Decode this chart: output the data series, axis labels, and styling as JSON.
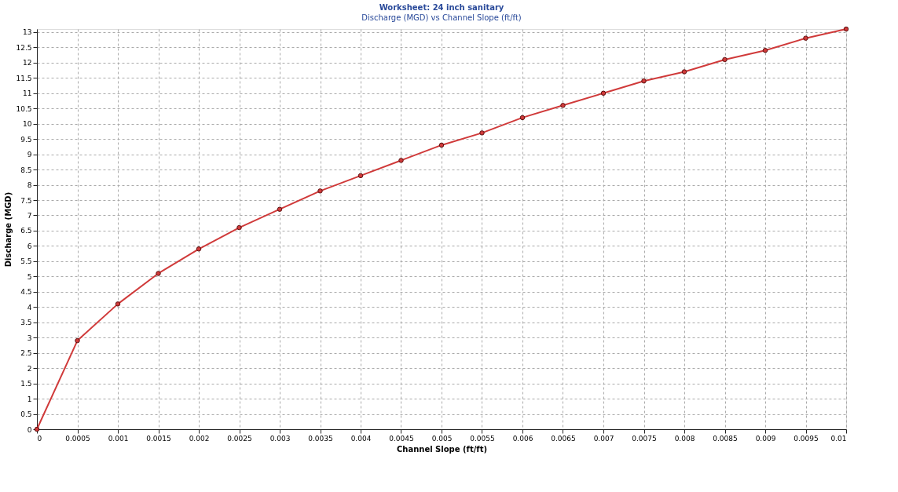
{
  "chart_data": {
    "type": "line",
    "title": "Worksheet: 24 inch sanitary",
    "subtitle": "Discharge (MGD) vs Channel Slope (ft/ft)",
    "xlabel": "Channel Slope (ft/ft)",
    "ylabel": "Discharge (MGD)",
    "x": [
      0,
      0.0005,
      0.001,
      0.0015,
      0.002,
      0.0025,
      0.003,
      0.0035,
      0.004,
      0.0045,
      0.005,
      0.0055,
      0.006,
      0.0065,
      0.007,
      0.0075,
      0.008,
      0.0085,
      0.009,
      0.0095,
      0.01
    ],
    "series": [
      {
        "color": "#d03a3a",
        "values": [
          0,
          2.9,
          4.1,
          5.1,
          5.9,
          6.6,
          7.2,
          7.8,
          8.3,
          8.8,
          9.3,
          9.7,
          10.2,
          10.6,
          11.0,
          11.4,
          11.7,
          12.1,
          12.4,
          12.8,
          13.1
        ]
      }
    ],
    "xlim": [
      0,
      0.01
    ],
    "ylim": [
      0,
      13.1
    ],
    "xticks": [
      0,
      0.0005,
      0.001,
      0.0015,
      0.002,
      0.0025,
      0.003,
      0.0035,
      0.004,
      0.0045,
      0.005,
      0.0055,
      0.006,
      0.0065,
      0.007,
      0.0075,
      0.008,
      0.0085,
      0.009,
      0.0095,
      0.01
    ],
    "yticks": [
      0,
      0.5,
      1,
      1.5,
      2,
      2.5,
      3,
      3.5,
      4,
      4.5,
      5,
      5.5,
      6,
      6.5,
      7,
      7.5,
      8,
      8.5,
      9,
      9.5,
      10,
      10.5,
      11,
      11.5,
      12,
      12.5,
      13
    ],
    "grid": true,
    "marker": "circle",
    "line_style": "solid"
  }
}
